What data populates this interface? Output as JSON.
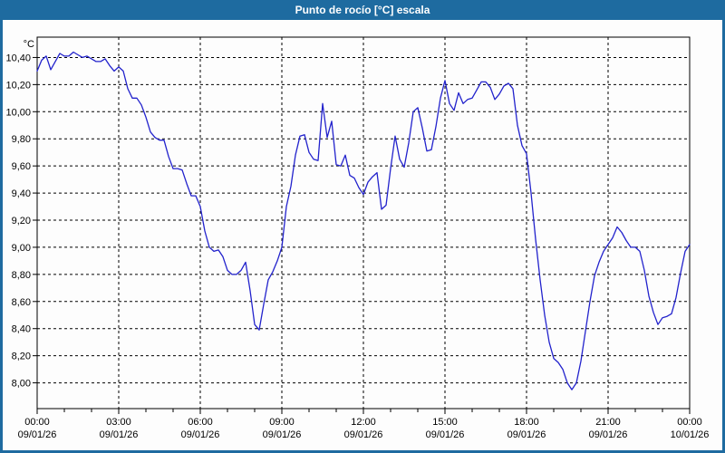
{
  "window": {
    "title": "Punto de rocío [°C] escala"
  },
  "colors": {
    "frame": "#1e6ba0",
    "title_text": "#ffffff",
    "plot_background": "#fdfdfd",
    "grid": "#000000",
    "axis_text": "#000000",
    "line": "#2222cc"
  },
  "chart_data": {
    "type": "line",
    "title": "Punto de rocío [°C] escala",
    "ylabel": "°C",
    "xlabel": "",
    "legend": "none",
    "grid": "dashed",
    "ylim": [
      7.81,
      10.55
    ],
    "xlim_hours": [
      0,
      24
    ],
    "y_ticks": [
      {
        "value": 10.4,
        "label": "10,40"
      },
      {
        "value": 10.2,
        "label": "10,20"
      },
      {
        "value": 10.0,
        "label": "10,00"
      },
      {
        "value": 9.8,
        "label": "9,80"
      },
      {
        "value": 9.6,
        "label": "9,60"
      },
      {
        "value": 9.4,
        "label": "9,40"
      },
      {
        "value": 9.2,
        "label": "9,20"
      },
      {
        "value": 9.0,
        "label": "9,00"
      },
      {
        "value": 8.8,
        "label": "8,80"
      },
      {
        "value": 8.6,
        "label": "8,60"
      },
      {
        "value": 8.4,
        "label": "8,40"
      },
      {
        "value": 8.2,
        "label": "8,20"
      },
      {
        "value": 8.0,
        "label": "8,00"
      }
    ],
    "x_ticks": [
      {
        "hour": 0,
        "time": "00:00",
        "date": "09/01/26"
      },
      {
        "hour": 3,
        "time": "03:00",
        "date": "09/01/26"
      },
      {
        "hour": 6,
        "time": "06:00",
        "date": "09/01/26"
      },
      {
        "hour": 9,
        "time": "09:00",
        "date": "09/01/26"
      },
      {
        "hour": 12,
        "time": "12:00",
        "date": "09/01/26"
      },
      {
        "hour": 15,
        "time": "15:00",
        "date": "09/01/26"
      },
      {
        "hour": 18,
        "time": "18:00",
        "date": "09/01/26"
      },
      {
        "hour": 21,
        "time": "21:00",
        "date": "09/01/26"
      },
      {
        "hour": 24,
        "time": "00:00",
        "date": "10/01/26"
      }
    ],
    "x_minor_tick_hours": 1,
    "series": [
      {
        "name": "Punto de rocío",
        "color": "#2222cc",
        "start_hour": 0,
        "step_minutes": 10,
        "values": [
          10.3,
          10.38,
          10.41,
          10.31,
          10.37,
          10.43,
          10.41,
          10.41,
          10.44,
          10.42,
          10.4,
          10.41,
          10.39,
          10.37,
          10.37,
          10.39,
          10.34,
          10.3,
          10.33,
          10.3,
          10.17,
          10.1,
          10.1,
          10.05,
          9.96,
          9.85,
          9.81,
          9.79,
          9.79,
          9.67,
          9.58,
          9.58,
          9.57,
          9.47,
          9.38,
          9.38,
          9.3,
          9.12,
          9.0,
          8.97,
          8.98,
          8.93,
          8.83,
          8.8,
          8.8,
          8.83,
          8.89,
          8.68,
          8.43,
          8.39,
          8.58,
          8.76,
          8.82,
          8.9,
          9.0,
          9.3,
          9.45,
          9.68,
          9.82,
          9.83,
          9.7,
          9.65,
          9.64,
          10.06,
          9.81,
          9.93,
          9.61,
          9.6,
          9.68,
          9.53,
          9.51,
          9.44,
          9.39,
          9.48,
          9.52,
          9.55,
          9.28,
          9.31,
          9.58,
          9.82,
          9.65,
          9.59,
          9.77,
          10.0,
          10.03,
          9.88,
          9.71,
          9.72,
          9.89,
          10.1,
          10.23,
          10.06,
          10.01,
          10.14,
          10.06,
          10.09,
          10.1,
          10.16,
          10.22,
          10.22,
          10.18,
          10.09,
          10.13,
          10.19,
          10.21,
          10.17,
          9.9,
          9.75,
          9.69,
          9.4,
          9.06,
          8.76,
          8.5,
          8.3,
          8.18,
          8.15,
          8.1,
          8.0,
          7.95,
          8.0,
          8.16,
          8.38,
          8.6,
          8.79,
          8.89,
          8.97,
          9.02,
          9.07,
          9.15,
          9.11,
          9.05,
          9.0,
          9.0,
          8.97,
          8.83,
          8.64,
          8.52,
          8.43,
          8.48,
          8.49,
          8.51,
          8.63,
          8.81,
          8.97,
          9.02
        ]
      }
    ]
  }
}
